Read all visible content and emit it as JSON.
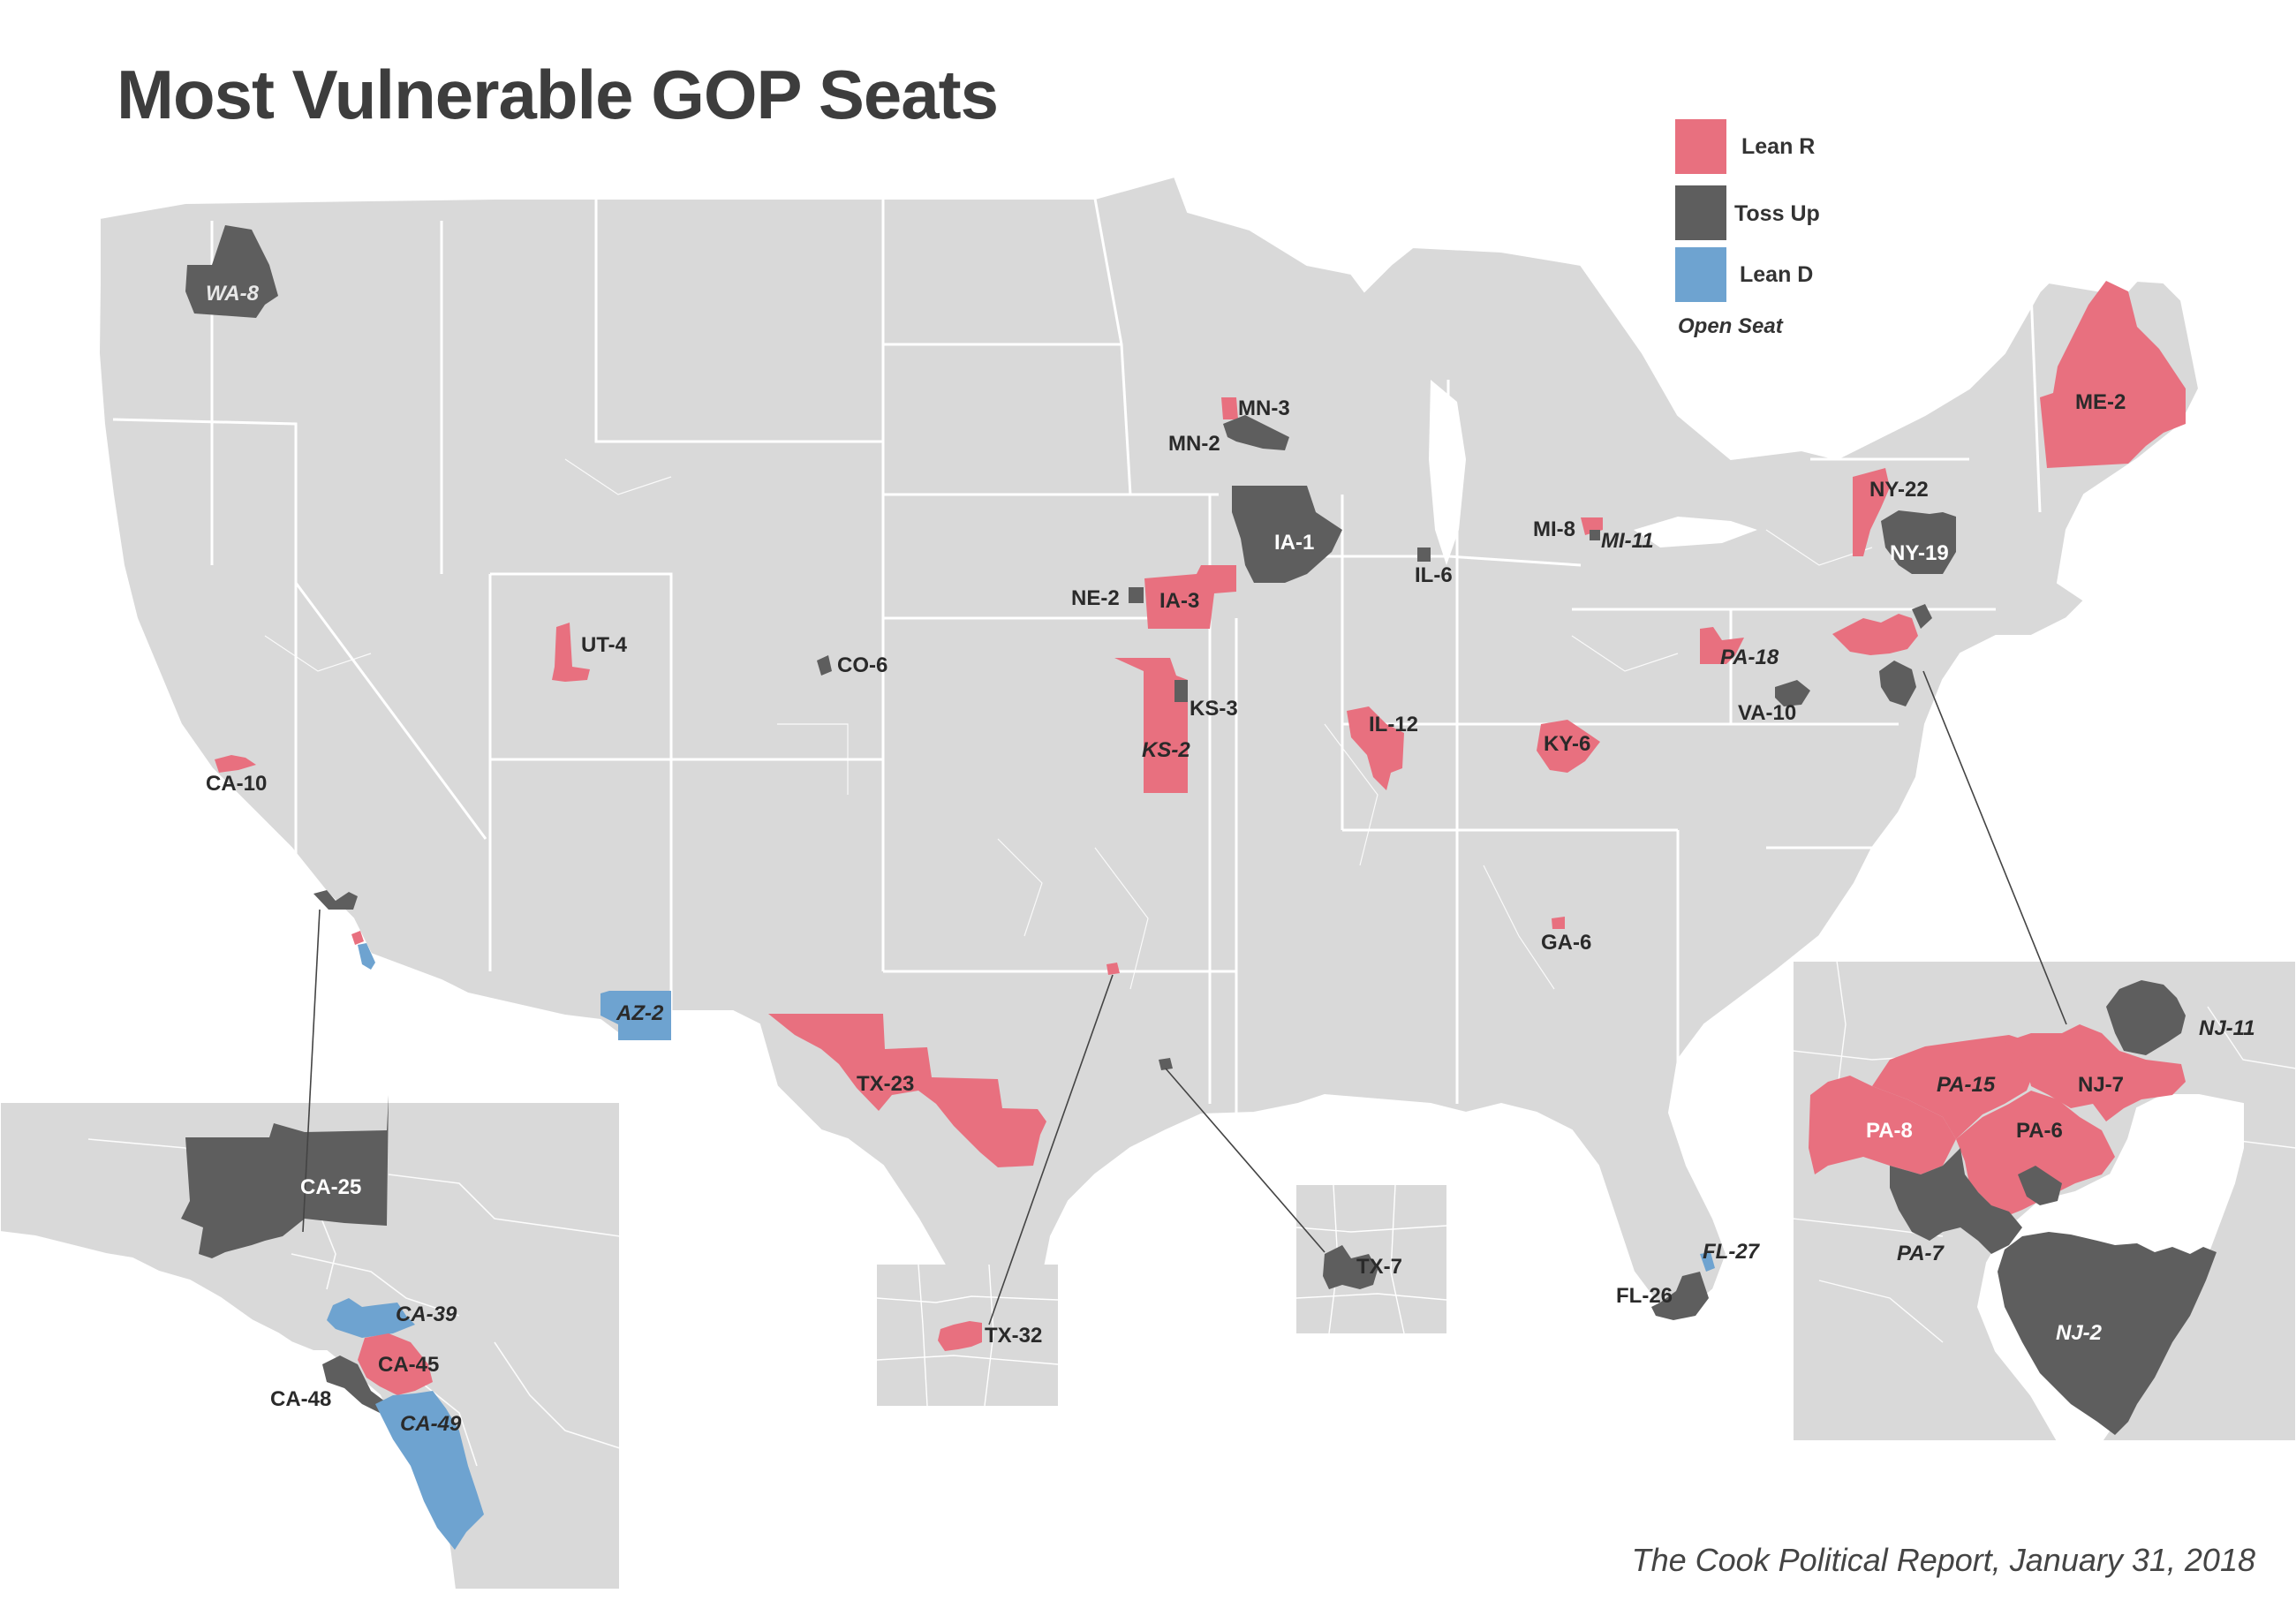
{
  "title": "Most Vulnerable GOP Seats",
  "source": "The Cook Political Report, January 31, 2018",
  "colors": {
    "lean_r": "#e8707f",
    "toss_up": "#5e5e5e",
    "lean_d": "#6ea3d0",
    "land": "#d9d9d9",
    "border": "#ffffff"
  },
  "legend": {
    "lean_r": "Lean R",
    "toss_up": "Toss Up",
    "lean_d": "Lean D",
    "open_seat": "Open Seat"
  },
  "districts": {
    "wa8": "WA-8",
    "mn3": "MN-3",
    "mn2": "MN-2",
    "ia1": "IA-1",
    "ne2": "NE-2",
    "ia3": "IA-3",
    "ut4": "UT-4",
    "co6": "CO-6",
    "ks3": "KS-3",
    "ks2": "KS-2",
    "il6": "IL-6",
    "il12": "IL-12",
    "mi8": "MI-8",
    "mi11": "MI-11",
    "ky6": "KY-6",
    "ga6": "GA-6",
    "me2": "ME-2",
    "ny22": "NY-22",
    "ny19": "NY-19",
    "pa18": "PA-18",
    "va10": "VA-10",
    "ca10": "CA-10",
    "az2": "AZ-2",
    "tx23": "TX-23",
    "tx7": "TX-7",
    "tx32": "TX-32",
    "fl26": "FL-26",
    "fl27": "FL-27",
    "ca25": "CA-25",
    "ca39": "CA-39",
    "ca45": "CA-45",
    "ca48": "CA-48",
    "ca49": "CA-49",
    "nj11": "NJ-11",
    "pa15": "PA-15",
    "nj7": "NJ-7",
    "pa8": "PA-8",
    "pa6": "PA-6",
    "pa7": "PA-7",
    "nj2": "NJ-2"
  }
}
